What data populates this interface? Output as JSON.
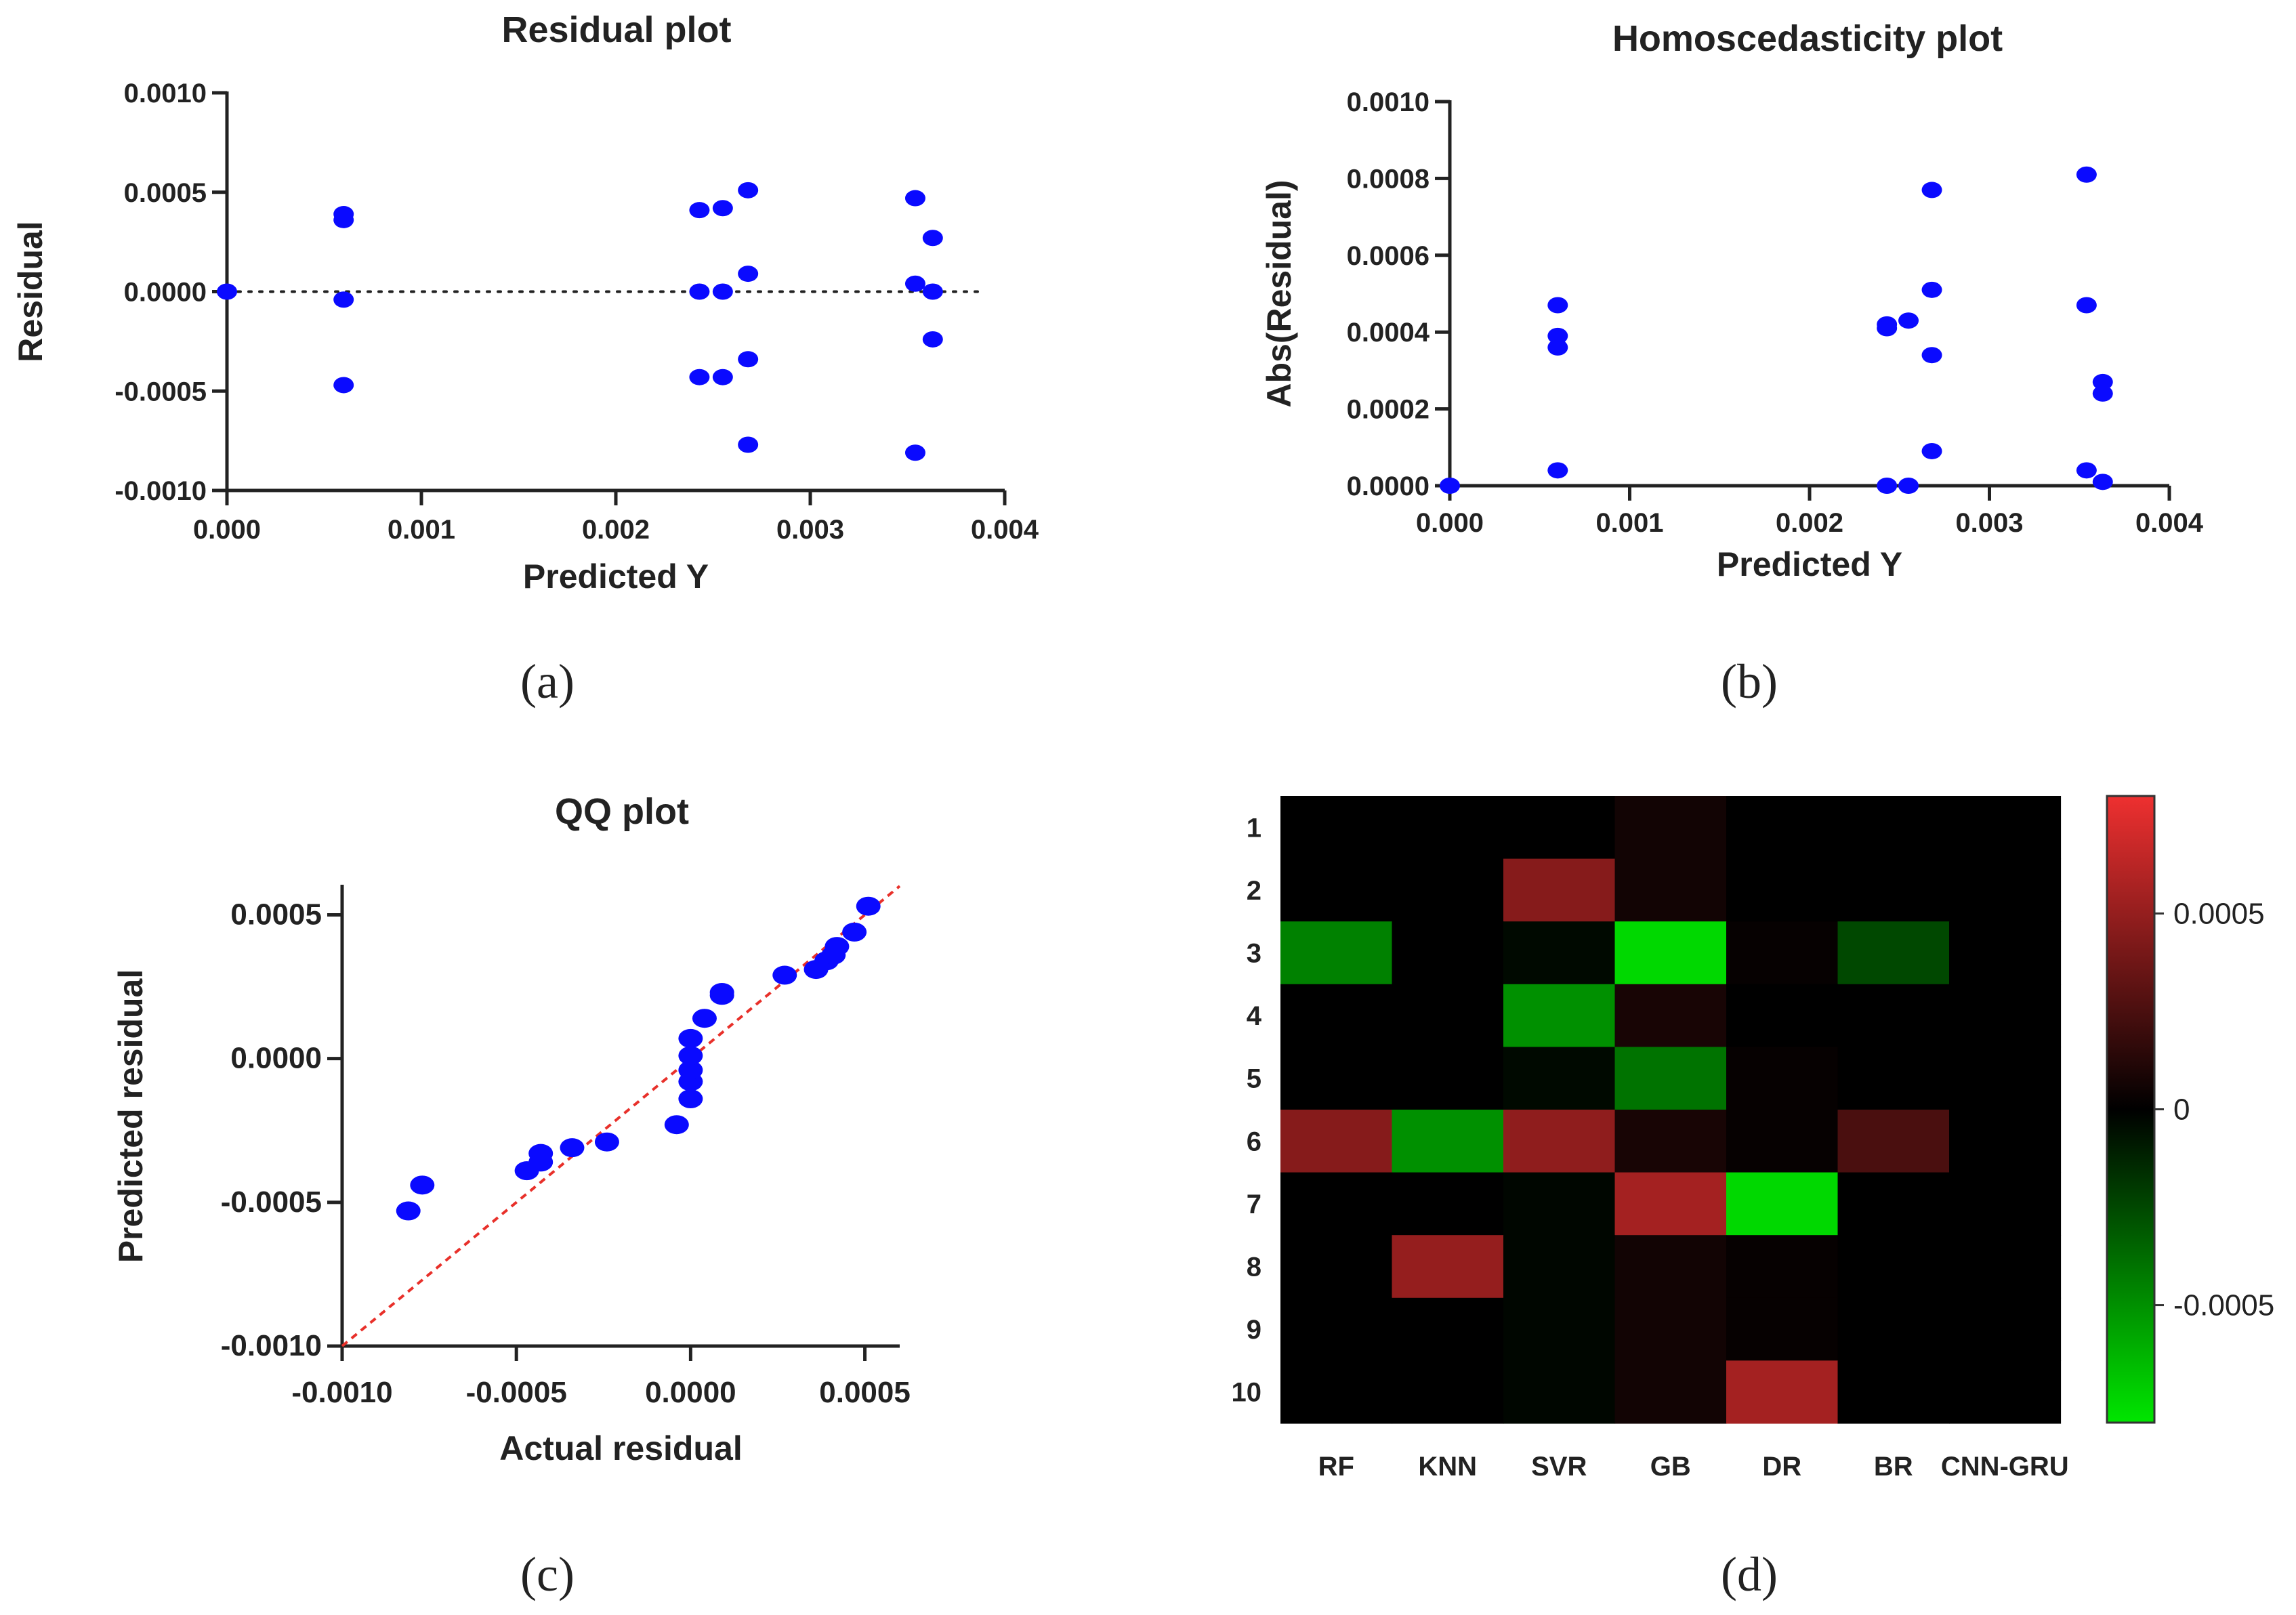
{
  "panels": [
    "(a)",
    "(b)",
    "(c)",
    "(d)"
  ],
  "chart_data": [
    {
      "type": "scatter",
      "id": "a",
      "title": "Residual plot",
      "xlabel": "Predicted Y",
      "ylabel": "Residual",
      "xlim": [
        0,
        0.004
      ],
      "ylim": [
        -0.001,
        0.001
      ],
      "xticks": [
        "0.000",
        "0.001",
        "0.002",
        "0.003",
        "0.004"
      ],
      "yticks": [
        "0.0010",
        "0.0005",
        "0.0000",
        "-0.0005",
        "-0.0010"
      ],
      "xtick_values": [
        0,
        0.001,
        0.002,
        0.003,
        0.004
      ],
      "ytick_values": [
        0.001,
        0.0005,
        0,
        -0.0005,
        -0.001
      ],
      "reference_line": {
        "y": 0,
        "style": "dotted"
      },
      "points": [
        [
          0.0,
          0.0
        ],
        [
          0.0006,
          0.00039
        ],
        [
          0.0006,
          0.00036
        ],
        [
          0.0006,
          -4e-05
        ],
        [
          0.0006,
          -0.00047
        ],
        [
          0.00243,
          0.00041
        ],
        [
          0.00243,
          0.0
        ],
        [
          0.00243,
          -0.00043
        ],
        [
          0.00255,
          0.00042
        ],
        [
          0.00255,
          0.0
        ],
        [
          0.00255,
          -0.00043
        ],
        [
          0.00268,
          0.00051
        ],
        [
          0.00268,
          9e-05
        ],
        [
          0.00268,
          -0.00034
        ],
        [
          0.00268,
          -0.00077
        ],
        [
          0.00354,
          0.00047
        ],
        [
          0.00354,
          4e-05
        ],
        [
          0.00354,
          -0.00081
        ],
        [
          0.00363,
          0.00027
        ],
        [
          0.00363,
          0.0
        ],
        [
          0.00363,
          -0.00024
        ]
      ]
    },
    {
      "type": "scatter",
      "id": "b",
      "title": "Homoscedasticity plot",
      "xlabel": "Predicted Y",
      "ylabel": "Abs(Residual)",
      "xlim": [
        0,
        0.004
      ],
      "ylim": [
        0,
        0.001
      ],
      "xticks": [
        "0.000",
        "0.001",
        "0.002",
        "0.003",
        "0.004"
      ],
      "yticks": [
        "0.0010",
        "0.0008",
        "0.0006",
        "0.0004",
        "0.0002",
        "0.0000"
      ],
      "xtick_values": [
        0,
        0.001,
        0.002,
        0.003,
        0.004
      ],
      "ytick_values": [
        0.001,
        0.0008,
        0.0006,
        0.0004,
        0.0002,
        0
      ],
      "points": [
        [
          0.0,
          0.0
        ],
        [
          0.0006,
          0.00047
        ],
        [
          0.0006,
          0.00039
        ],
        [
          0.0006,
          0.00036
        ],
        [
          0.0006,
          4e-05
        ],
        [
          0.00243,
          0.00042
        ],
        [
          0.00243,
          0.00041
        ],
        [
          0.00243,
          0.0
        ],
        [
          0.00255,
          0.00043
        ],
        [
          0.00255,
          0.0
        ],
        [
          0.00268,
          0.00077
        ],
        [
          0.00268,
          0.00051
        ],
        [
          0.00268,
          0.00034
        ],
        [
          0.00268,
          9e-05
        ],
        [
          0.00354,
          0.00081
        ],
        [
          0.00354,
          0.00047
        ],
        [
          0.00354,
          4e-05
        ],
        [
          0.00363,
          0.00027
        ],
        [
          0.00363,
          0.00024
        ],
        [
          0.00363,
          1e-05
        ]
      ]
    },
    {
      "type": "scatter",
      "id": "c",
      "title": "QQ plot",
      "xlabel": "Actual residual",
      "ylabel": "Predicted residual",
      "xlim": [
        -0.001,
        0.0006
      ],
      "ylim": [
        -0.001,
        0.0006
      ],
      "xticks": [
        "-0.0010",
        "-0.0005",
        "0.0000",
        "0.0005"
      ],
      "yticks": [
        "0.0005",
        "0.0000",
        "-0.0005",
        "-0.0010"
      ],
      "xtick_values": [
        -0.001,
        -0.0005,
        0,
        0.0005
      ],
      "ytick_values": [
        0.0005,
        0,
        -0.0005,
        -0.001
      ],
      "reference_line": {
        "from": [
          -0.001,
          -0.001
        ],
        "to": [
          0.0006,
          0.0006
        ],
        "style": "dashed",
        "color": "#e8302a"
      },
      "points": [
        [
          -0.00081,
          -0.00053
        ],
        [
          -0.00077,
          -0.00044
        ],
        [
          -0.00047,
          -0.00039
        ],
        [
          -0.00043,
          -0.00036
        ],
        [
          -0.00043,
          -0.00033
        ],
        [
          -0.00034,
          -0.00031
        ],
        [
          -0.00024,
          -0.00029
        ],
        [
          -4e-05,
          -0.00023
        ],
        [
          0.0,
          -0.00014
        ],
        [
          0.0,
          -8e-05
        ],
        [
          0.0,
          -4e-05
        ],
        [
          0.0,
          1e-05
        ],
        [
          0.0,
          7e-05
        ],
        [
          4e-05,
          0.00014
        ],
        [
          9e-05,
          0.00022
        ],
        [
          9e-05,
          0.00023
        ],
        [
          0.00027,
          0.00029
        ],
        [
          0.00036,
          0.00031
        ],
        [
          0.00039,
          0.00034
        ],
        [
          0.00041,
          0.00036
        ],
        [
          0.00042,
          0.00039
        ],
        [
          0.00047,
          0.00044
        ],
        [
          0.00051,
          0.00053
        ]
      ]
    },
    {
      "type": "heatmap",
      "id": "d",
      "columns": [
        "RF",
        "KNN",
        "SVR",
        "GB",
        "DR",
        "BR",
        "CNN-GRU"
      ],
      "rows": [
        "1",
        "2",
        "3",
        "4",
        "5",
        "6",
        "7",
        "8",
        "9",
        "10"
      ],
      "vmin": -0.0008,
      "vmax": 0.0008,
      "colorbar_ticks": [
        "0.0005",
        "0",
        "-0.0005"
      ],
      "colorbar_tick_values": [
        0.0005,
        0,
        -0.0005
      ],
      "colorscale": {
        "negative": "#00e600",
        "zero": "#000000",
        "positive": "#ee3030"
      },
      "values": [
        [
          0,
          0,
          0,
          6e-05,
          0,
          0,
          0
        ],
        [
          0,
          0,
          0.00045,
          6e-05,
          0,
          0,
          0
        ],
        [
          -0.00045,
          0,
          -3e-05,
          -0.00075,
          2e-05,
          -0.00025,
          0
        ],
        [
          0,
          0,
          -0.0005,
          8e-05,
          0,
          0,
          0
        ],
        [
          0,
          0,
          -3e-05,
          -0.0004,
          2e-05,
          0,
          0
        ],
        [
          0.00045,
          -0.0005,
          0.00048,
          8e-05,
          2e-05,
          0.00025,
          0
        ],
        [
          0,
          0,
          -2e-05,
          0.00055,
          -0.00075,
          0,
          0
        ],
        [
          0,
          0.0005,
          -2e-05,
          6e-05,
          2e-05,
          0,
          0
        ],
        [
          0,
          0,
          -2e-05,
          6e-05,
          2e-05,
          0,
          0
        ],
        [
          0,
          0,
          -2e-05,
          6e-05,
          0.00055,
          0,
          0
        ]
      ]
    }
  ]
}
